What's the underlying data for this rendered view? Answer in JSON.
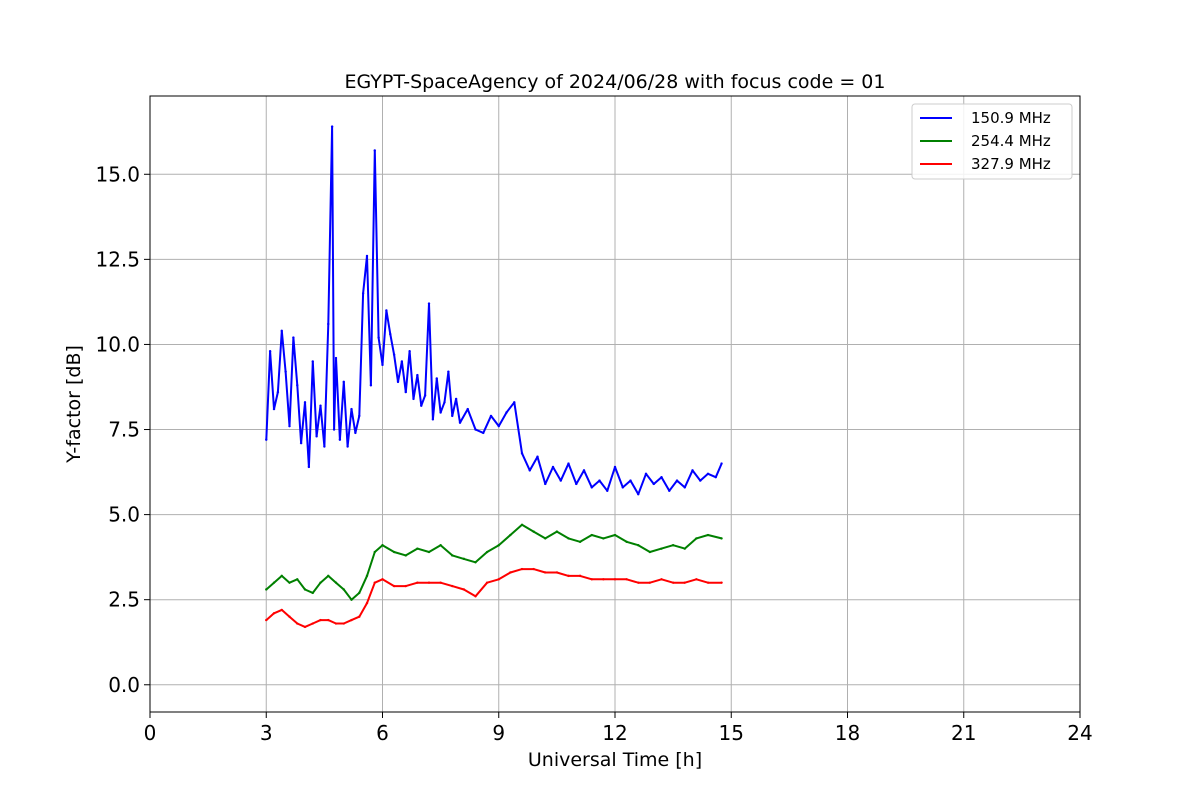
{
  "chart_data": {
    "type": "line",
    "title": "EGYPT-SpaceAgency of 2024/06/28 with focus code = 01",
    "xlabel": "Universal Time [h]",
    "ylabel": "Y-factor [dB]",
    "xlim": [
      0,
      24
    ],
    "ylim": [
      -0.8,
      17.3
    ],
    "xticks": [
      0,
      3,
      6,
      9,
      12,
      15,
      18,
      21,
      24
    ],
    "xtick_labels": [
      "0",
      "3",
      "6",
      "9",
      "12",
      "15",
      "18",
      "21",
      "24"
    ],
    "yticks": [
      0.0,
      2.5,
      5.0,
      7.5,
      10.0,
      12.5,
      15.0
    ],
    "ytick_labels": [
      "0.0",
      "2.5",
      "5.0",
      "7.5",
      "10.0",
      "12.5",
      "15.0"
    ],
    "grid": true,
    "legend_position": "top-right",
    "series": [
      {
        "name": "150.9 MHz",
        "color": "#0000ff",
        "x": [
          3.0,
          3.1,
          3.2,
          3.3,
          3.4,
          3.5,
          3.6,
          3.7,
          3.8,
          3.9,
          4.0,
          4.1,
          4.2,
          4.3,
          4.4,
          4.5,
          4.6,
          4.7,
          4.75,
          4.8,
          4.9,
          5.0,
          5.1,
          5.2,
          5.3,
          5.4,
          5.5,
          5.6,
          5.7,
          5.8,
          5.9,
          6.0,
          6.1,
          6.2,
          6.3,
          6.4,
          6.5,
          6.6,
          6.7,
          6.8,
          6.9,
          7.0,
          7.1,
          7.2,
          7.3,
          7.4,
          7.5,
          7.6,
          7.7,
          7.8,
          7.9,
          8.0,
          8.2,
          8.4,
          8.6,
          8.8,
          9.0,
          9.2,
          9.4,
          9.6,
          9.8,
          10.0,
          10.2,
          10.4,
          10.6,
          10.8,
          11.0,
          11.2,
          11.4,
          11.6,
          11.8,
          12.0,
          12.2,
          12.4,
          12.6,
          12.8,
          13.0,
          13.2,
          13.4,
          13.6,
          13.8,
          14.0,
          14.2,
          14.4,
          14.6,
          14.75
        ],
        "y": [
          7.2,
          9.8,
          8.1,
          8.6,
          10.4,
          9.2,
          7.6,
          10.2,
          8.8,
          7.1,
          8.3,
          6.4,
          9.5,
          7.3,
          8.2,
          7.0,
          10.6,
          16.4,
          7.5,
          9.6,
          7.2,
          8.9,
          7.0,
          8.1,
          7.4,
          7.9,
          11.5,
          12.6,
          8.8,
          15.7,
          10.2,
          9.4,
          11.0,
          10.3,
          9.7,
          8.9,
          9.5,
          8.6,
          9.8,
          8.4,
          9.1,
          8.2,
          8.5,
          11.2,
          7.8,
          9.0,
          8.0,
          8.3,
          9.2,
          7.9,
          8.4,
          7.7,
          8.1,
          7.5,
          7.4,
          7.9,
          7.6,
          8.0,
          8.3,
          6.8,
          6.3,
          6.7,
          5.9,
          6.4,
          6.0,
          6.5,
          5.9,
          6.3,
          5.8,
          6.0,
          5.7,
          6.4,
          5.8,
          6.0,
          5.6,
          6.2,
          5.9,
          6.1,
          5.7,
          6.0,
          5.8,
          6.3,
          6.0,
          6.2,
          6.1,
          6.5
        ]
      },
      {
        "name": "254.4 MHz",
        "color": "#008000",
        "x": [
          3.0,
          3.2,
          3.4,
          3.6,
          3.8,
          4.0,
          4.2,
          4.4,
          4.6,
          4.8,
          5.0,
          5.2,
          5.4,
          5.6,
          5.8,
          6.0,
          6.3,
          6.6,
          6.9,
          7.2,
          7.5,
          7.8,
          8.1,
          8.4,
          8.7,
          9.0,
          9.3,
          9.6,
          9.9,
          10.2,
          10.5,
          10.8,
          11.1,
          11.4,
          11.7,
          12.0,
          12.3,
          12.6,
          12.9,
          13.2,
          13.5,
          13.8,
          14.1,
          14.4,
          14.75
        ],
        "y": [
          2.8,
          3.0,
          3.2,
          3.0,
          3.1,
          2.8,
          2.7,
          3.0,
          3.2,
          3.0,
          2.8,
          2.5,
          2.7,
          3.2,
          3.9,
          4.1,
          3.9,
          3.8,
          4.0,
          3.9,
          4.1,
          3.8,
          3.7,
          3.6,
          3.9,
          4.1,
          4.4,
          4.7,
          4.5,
          4.3,
          4.5,
          4.3,
          4.2,
          4.4,
          4.3,
          4.4,
          4.2,
          4.1,
          3.9,
          4.0,
          4.1,
          4.0,
          4.3,
          4.4,
          4.3
        ]
      },
      {
        "name": "327.9 MHz",
        "color": "#ff0000",
        "x": [
          3.0,
          3.2,
          3.4,
          3.6,
          3.8,
          4.0,
          4.2,
          4.4,
          4.6,
          4.8,
          5.0,
          5.2,
          5.4,
          5.6,
          5.8,
          6.0,
          6.3,
          6.6,
          6.9,
          7.2,
          7.5,
          7.8,
          8.1,
          8.4,
          8.7,
          9.0,
          9.3,
          9.6,
          9.9,
          10.2,
          10.5,
          10.8,
          11.1,
          11.4,
          11.7,
          12.0,
          12.3,
          12.6,
          12.9,
          13.2,
          13.5,
          13.8,
          14.1,
          14.4,
          14.75
        ],
        "y": [
          1.9,
          2.1,
          2.2,
          2.0,
          1.8,
          1.7,
          1.8,
          1.9,
          1.9,
          1.8,
          1.8,
          1.9,
          2.0,
          2.4,
          3.0,
          3.1,
          2.9,
          2.9,
          3.0,
          3.0,
          3.0,
          2.9,
          2.8,
          2.6,
          3.0,
          3.1,
          3.3,
          3.4,
          3.4,
          3.3,
          3.3,
          3.2,
          3.2,
          3.1,
          3.1,
          3.1,
          3.1,
          3.0,
          3.0,
          3.1,
          3.0,
          3.0,
          3.1,
          3.0,
          3.0
        ]
      }
    ]
  }
}
